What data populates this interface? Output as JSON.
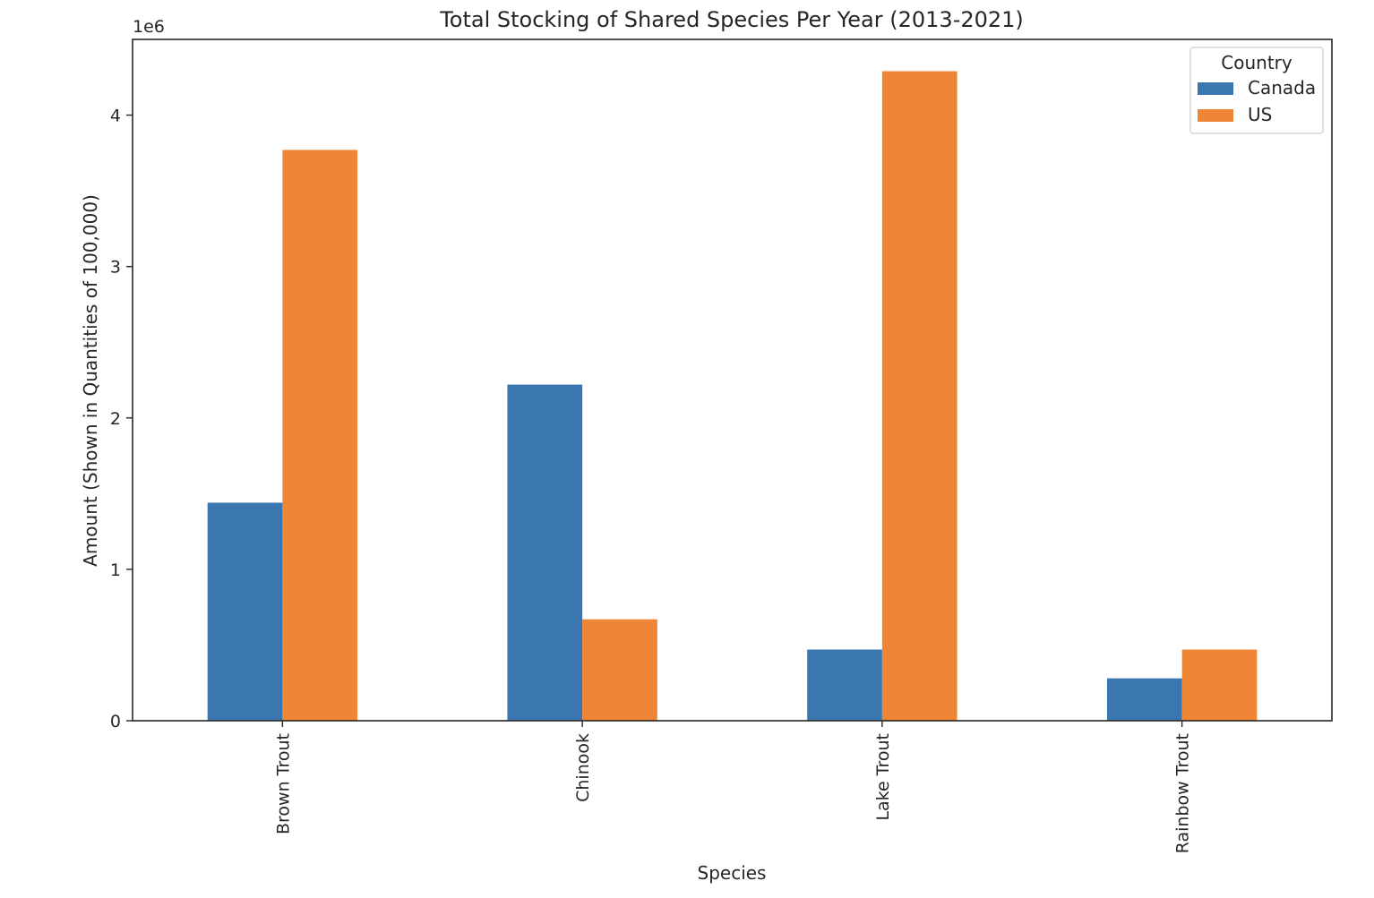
{
  "chart_data": {
    "type": "bar",
    "title": "Total Stocking of Shared Species Per Year (2013-2021)",
    "xlabel": "Species",
    "ylabel": "Amount (Shown in Quantities of 100,000)",
    "y_offset_label": "1e6",
    "categories": [
      "Brown Trout",
      "Chinook",
      "Lake Trout",
      "Rainbow Trout"
    ],
    "series": [
      {
        "name": "Canada",
        "color": "#3a76af",
        "values": [
          1440000,
          2220000,
          470000,
          280000
        ]
      },
      {
        "name": "US",
        "color": "#ef8636",
        "values": [
          3770000,
          670000,
          4290000,
          470000
        ]
      }
    ],
    "ylim": [
      0,
      4500000
    ],
    "yticks": [
      0,
      1000000,
      2000000,
      3000000,
      4000000
    ],
    "ytick_labels": [
      "0",
      "1",
      "2",
      "3",
      "4"
    ],
    "tick_label_rotation": "vertical",
    "legend": {
      "title": "Country",
      "position": "top-right"
    },
    "grid": false
  }
}
